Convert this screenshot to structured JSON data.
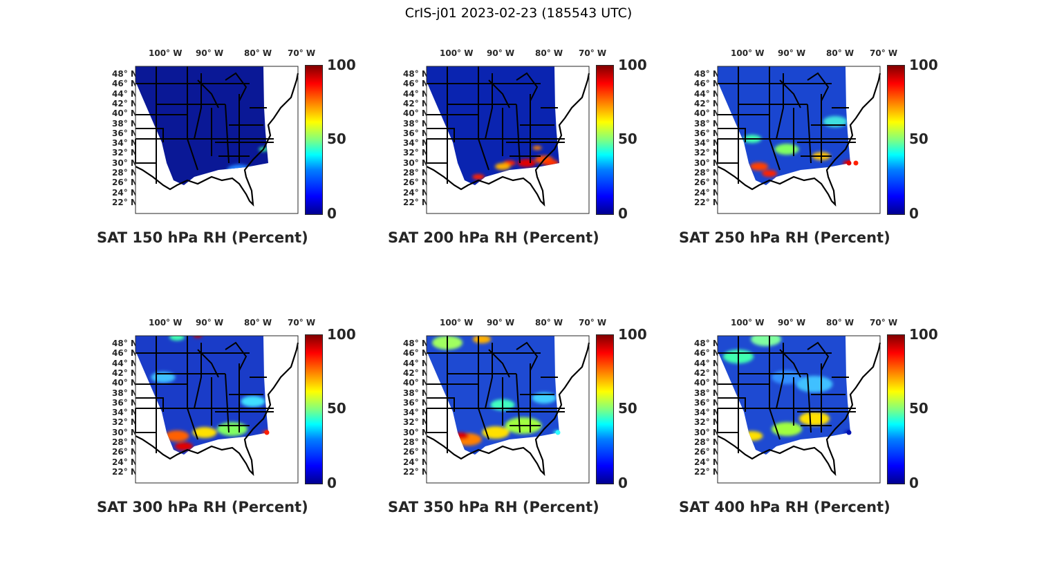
{
  "title": "CrIS-j01 2023-02-23 (185543 UTC)",
  "lon_labels": [
    "100° W",
    "90° W",
    "80° W",
    "70° W"
  ],
  "lat_labels": [
    "48° N",
    "46° N",
    "44° N",
    "42° N",
    "40° N",
    "38° N",
    "36° N",
    "34° N",
    "32° N",
    "30° N",
    "28° N",
    "26° N",
    "24° N",
    "22° N"
  ],
  "colorbar": {
    "ticks": [
      "100",
      "50",
      "0"
    ],
    "range": [
      0,
      100
    ],
    "colormap": "jet"
  },
  "panels": [
    {
      "title": "SAT 150 hPa RH (Percent)",
      "base_color": "#0a1896"
    },
    {
      "title": "SAT 200 hPa RH (Percent)",
      "base_color": "#0a24b0"
    },
    {
      "title": "SAT 250 hPa RH (Percent)",
      "base_color": "#1a46d0"
    },
    {
      "title": "SAT 300 hPa RH (Percent)",
      "base_color": "#1a3cc8"
    },
    {
      "title": "SAT 350 hPa RH (Percent)",
      "base_color": "#1e4ad2"
    },
    {
      "title": "SAT 400 hPa RH (Percent)",
      "base_color": "#1e4ad2"
    }
  ]
}
